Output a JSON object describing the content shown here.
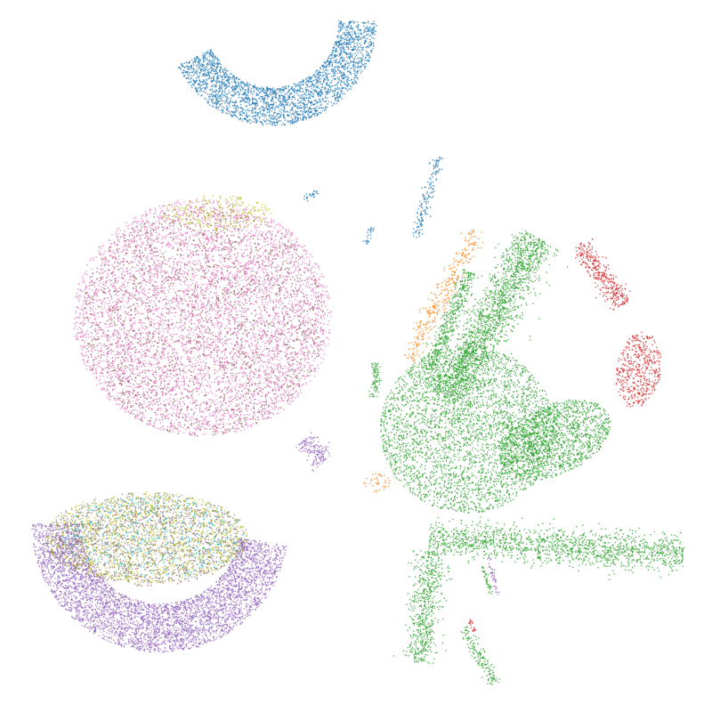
{
  "chart_data": {
    "type": "scatter",
    "title": "",
    "xlabel": "",
    "ylabel": "",
    "axes_visible": false,
    "grid": false,
    "legend": "none",
    "xlim": [
      0,
      100
    ],
    "ylim": [
      0,
      100
    ],
    "series": [
      {
        "color": "#1f77b4",
        "clusters": [
          {
            "shape": "arc",
            "cx": 38,
            "cy": 98,
            "r": 15,
            "width": 5.5,
            "a0": 205,
            "a1": 360,
            "count": 2600
          },
          {
            "shape": "line",
            "x0": 58.5,
            "y0": 67,
            "x1": 62,
            "y1": 78.5,
            "width": 0.8,
            "count": 160
          },
          {
            "shape": "line",
            "x0": 51.5,
            "y0": 66,
            "x1": 52.2,
            "y1": 68.5,
            "width": 0.5,
            "count": 25
          },
          {
            "shape": "line",
            "x0": 42.5,
            "y0": 72.5,
            "x1": 44.5,
            "y1": 73.5,
            "width": 0.5,
            "count": 25
          }
        ]
      },
      {
        "color": "#ff7f0e",
        "clusters": [
          {
            "shape": "line",
            "x0": 57.5,
            "y0": 49.5,
            "x1": 67.5,
            "y1": 68,
            "width": 1.5,
            "count": 320
          },
          {
            "shape": "blob",
            "cx": 53,
            "cy": 32,
            "rx": 2,
            "ry": 1.5,
            "rot": 0,
            "count": 40
          }
        ]
      },
      {
        "color": "#2ca02c",
        "clusters": [
          {
            "shape": "blob",
            "cx": 66,
            "cy": 39.5,
            "rx": 12.5,
            "ry": 12,
            "rot": 0,
            "count": 3500
          },
          {
            "shape": "line",
            "x0": 63,
            "y0": 44,
            "x1": 76,
            "y1": 67,
            "width": 3.2,
            "count": 1800
          },
          {
            "shape": "line",
            "x0": 60.5,
            "y0": 48,
            "x1": 66.5,
            "y1": 62,
            "width": 1.3,
            "count": 450
          },
          {
            "shape": "blob",
            "cx": 78.5,
            "cy": 38,
            "rx": 8.5,
            "ry": 5,
            "rot": 25,
            "count": 1500
          },
          {
            "shape": "line",
            "x0": 60.5,
            "y0": 24,
            "x1": 97,
            "y1": 21.5,
            "width": 2.6,
            "count": 1500
          },
          {
            "shape": "line",
            "x0": 61,
            "y0": 22,
            "x1": 59,
            "y1": 6,
            "width": 2.2,
            "count": 600
          },
          {
            "shape": "line",
            "x0": 65.5,
            "y0": 11,
            "x1": 70,
            "y1": 3,
            "width": 0.9,
            "count": 150
          },
          {
            "shape": "line",
            "x0": 52.5,
            "y0": 44,
            "x1": 53,
            "y1": 49,
            "width": 0.6,
            "count": 90
          },
          {
            "shape": "line",
            "x0": 68,
            "y0": 20,
            "x1": 69.5,
            "y1": 16,
            "width": 0.3,
            "count": 40
          }
        ]
      },
      {
        "color": "#d62728",
        "clusters": [
          {
            "shape": "line",
            "x0": 82,
            "y0": 66,
            "x1": 88.5,
            "y1": 57.5,
            "width": 1.5,
            "count": 360
          },
          {
            "shape": "blob",
            "cx": 90.5,
            "cy": 48,
            "rx": 3.2,
            "ry": 5.5,
            "rot": -10,
            "count": 480
          },
          {
            "shape": "line",
            "x0": 66,
            "y0": 12.5,
            "x1": 67,
            "y1": 10.5,
            "width": 0.4,
            "count": 20
          }
        ]
      },
      {
        "color": "#9467bd",
        "clusters": [
          {
            "shape": "arc",
            "cx": 22,
            "cy": 26,
            "r": 18.5,
            "width": 7,
            "a0": 180,
            "a1": 350,
            "count": 4300
          },
          {
            "shape": "line",
            "x0": 42.5,
            "y0": 38,
            "x1": 45.5,
            "y1": 35,
            "width": 1.5,
            "count": 160
          },
          {
            "shape": "line",
            "x0": 69,
            "y0": 21,
            "x1": 70.5,
            "y1": 15.5,
            "width": 0.35,
            "count": 40
          }
        ]
      },
      {
        "color": "#8c564b",
        "clusters": [
          {
            "shape": "blob",
            "cx": 28,
            "cy": 55,
            "rx": 17.5,
            "ry": 16.5,
            "rot": 0,
            "count": 2200
          },
          {
            "shape": "blob",
            "cx": 20,
            "cy": 23,
            "rx": 14,
            "ry": 6,
            "rot": 0,
            "count": 450
          }
        ]
      },
      {
        "color": "#e377c2",
        "clusters": [
          {
            "shape": "blob",
            "cx": 28,
            "cy": 55.5,
            "rx": 18.5,
            "ry": 17,
            "rot": 0,
            "count": 5200
          }
        ]
      },
      {
        "color": "#7f7f7f",
        "clusters": [
          {
            "shape": "blob",
            "cx": 20,
            "cy": 24,
            "rx": 14.5,
            "ry": 6.5,
            "rot": 0,
            "count": 1300
          }
        ]
      },
      {
        "color": "#bcbd22",
        "clusters": [
          {
            "shape": "blob",
            "cx": 20,
            "cy": 24,
            "rx": 14.5,
            "ry": 6.5,
            "rot": 0,
            "count": 1200
          },
          {
            "shape": "blob",
            "cx": 30,
            "cy": 70.5,
            "rx": 8,
            "ry": 2.5,
            "rot": 0,
            "count": 250
          }
        ]
      },
      {
        "color": "#17becf",
        "clusters": [
          {
            "shape": "blob",
            "cx": 21,
            "cy": 24,
            "rx": 13,
            "ry": 6,
            "rot": 0,
            "count": 380
          }
        ]
      }
    ]
  }
}
